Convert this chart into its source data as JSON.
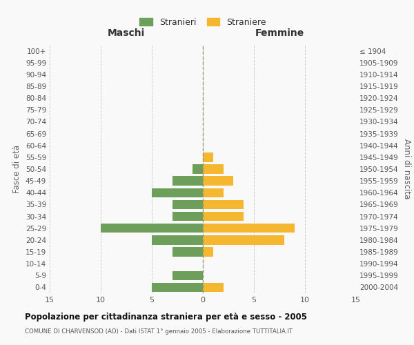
{
  "age_groups": [
    "0-4",
    "5-9",
    "10-14",
    "15-19",
    "20-24",
    "25-29",
    "30-34",
    "35-39",
    "40-44",
    "45-49",
    "50-54",
    "55-59",
    "60-64",
    "65-69",
    "70-74",
    "75-79",
    "80-84",
    "85-89",
    "90-94",
    "95-99",
    "100+"
  ],
  "birth_years": [
    "2000-2004",
    "1995-1999",
    "1990-1994",
    "1985-1989",
    "1980-1984",
    "1975-1979",
    "1970-1974",
    "1965-1969",
    "1960-1964",
    "1955-1959",
    "1950-1954",
    "1945-1949",
    "1940-1944",
    "1935-1939",
    "1930-1934",
    "1925-1929",
    "1920-1924",
    "1915-1919",
    "1910-1914",
    "1905-1909",
    "≤ 1904"
  ],
  "males": [
    5,
    3,
    0,
    3,
    5,
    10,
    3,
    3,
    5,
    3,
    1,
    0,
    0,
    0,
    0,
    0,
    0,
    0,
    0,
    0,
    0
  ],
  "females": [
    2,
    0,
    0,
    1,
    8,
    9,
    4,
    4,
    2,
    3,
    2,
    1,
    0,
    0,
    0,
    0,
    0,
    0,
    0,
    0,
    0
  ],
  "color_males": "#6d9e5a",
  "color_females": "#f5b730",
  "title": "Popolazione per cittadinanza straniera per età e sesso - 2005",
  "subtitle": "COMUNE DI CHARVENSOD (AO) - Dati ISTAT 1° gennaio 2005 - Elaborazione TUTTITALIA.IT",
  "xlabel_left": "Maschi",
  "xlabel_right": "Femmine",
  "ylabel_left": "Fasce di età",
  "ylabel_right": "Anni di nascita",
  "legend_males": "Stranieri",
  "legend_females": "Straniere",
  "xlim": 15,
  "background_color": "#f9f9f9",
  "grid_color": "#cccccc"
}
